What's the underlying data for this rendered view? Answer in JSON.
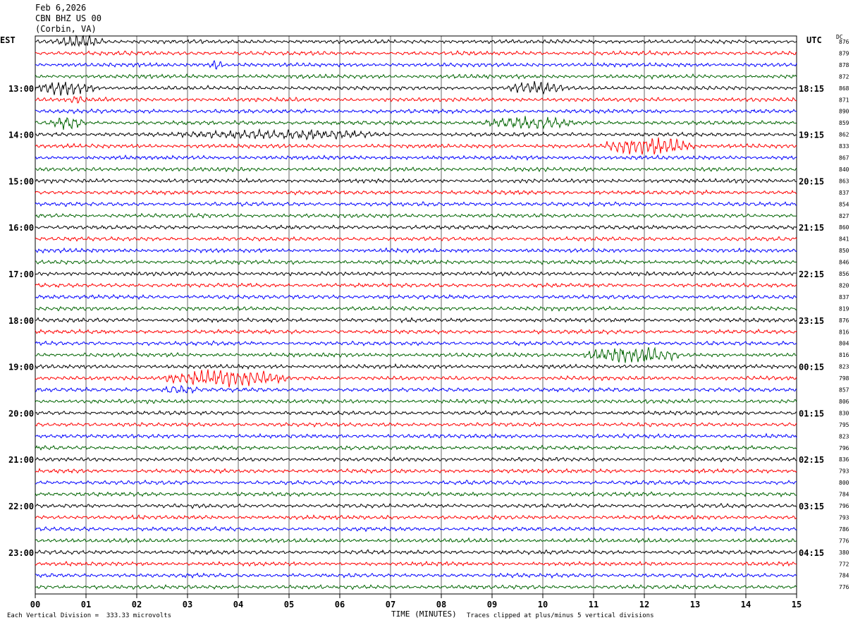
{
  "header": {
    "date": "Feb 6,2026",
    "station": "CBN BHZ US 00",
    "location": "(Corbin, VA)"
  },
  "left_zone": "EST",
  "right_zone": "UTC",
  "dc_label": "DC",
  "footer": {
    "scale_note": "Each Vertical Division =  333.33 microvolts",
    "xlabel": "TIME (MINUTES)",
    "clip_note": "Traces clipped at plus/minus 5 vertical divisions"
  },
  "chart_data": {
    "type": "line",
    "title": "",
    "xlabel": "TIME (MINUTES)",
    "ylabel": "",
    "xlim": [
      0,
      15
    ],
    "x_ticks": [
      "00",
      "01",
      "02",
      "03",
      "04",
      "05",
      "06",
      "07",
      "08",
      "09",
      "10",
      "11",
      "12",
      "13",
      "14",
      "15"
    ],
    "trace_count": 48,
    "minutes_per_trace": 15,
    "trace_colors": [
      "#000000",
      "#ff0000",
      "#0000ff",
      "#006400"
    ],
    "left_hour_labels": [
      "13:00",
      "14:00",
      "15:00",
      "16:00",
      "17:00",
      "18:00",
      "19:00",
      "20:00",
      "21:00",
      "22:00",
      "23:00"
    ],
    "right_hour_labels": [
      "18:15",
      "19:15",
      "20:15",
      "21:15",
      "22:15",
      "23:15",
      "00:15",
      "01:15",
      "02:15",
      "03:15",
      "04:15"
    ],
    "dc_offsets": [
      "876",
      "879",
      "878",
      "872",
      "868",
      "871",
      "890",
      "859",
      "862",
      "833",
      "867",
      "840",
      "863",
      "837",
      "854",
      "827",
      "860",
      "841",
      "850",
      "846",
      "856",
      "820",
      "837",
      "819",
      "876",
      "816",
      "804",
      "816",
      "823",
      "798",
      "857",
      "806",
      "830",
      "795",
      "823",
      "796",
      "836",
      "793",
      "800",
      "784",
      "796",
      "793",
      "786",
      "776",
      "380",
      "772",
      "784",
      "776"
    ],
    "events": [
      {
        "trace": 0,
        "start": 0.4,
        "end": 1.4,
        "amp": 2.2
      },
      {
        "trace": 2,
        "start": 3.4,
        "end": 3.7,
        "amp": 1.8
      },
      {
        "trace": 4,
        "start": 0.0,
        "end": 1.2,
        "amp": 2.6
      },
      {
        "trace": 4,
        "start": 9.3,
        "end": 10.4,
        "amp": 2.4
      },
      {
        "trace": 5,
        "start": 0.7,
        "end": 1.0,
        "amp": 1.6
      },
      {
        "trace": 7,
        "start": 0.3,
        "end": 1.0,
        "amp": 2.2
      },
      {
        "trace": 7,
        "start": 8.8,
        "end": 10.6,
        "amp": 2.2
      },
      {
        "trace": 8,
        "start": 2.8,
        "end": 6.8,
        "amp": 1.6
      },
      {
        "trace": 9,
        "start": 11.2,
        "end": 13.0,
        "amp": 3.2
      },
      {
        "trace": 29,
        "start": 2.5,
        "end": 5.0,
        "amp": 3.2
      },
      {
        "trace": 30,
        "start": 2.5,
        "end": 3.2,
        "amp": 1.7
      },
      {
        "trace": 27,
        "start": 10.8,
        "end": 12.7,
        "amp": 3.2
      }
    ]
  }
}
